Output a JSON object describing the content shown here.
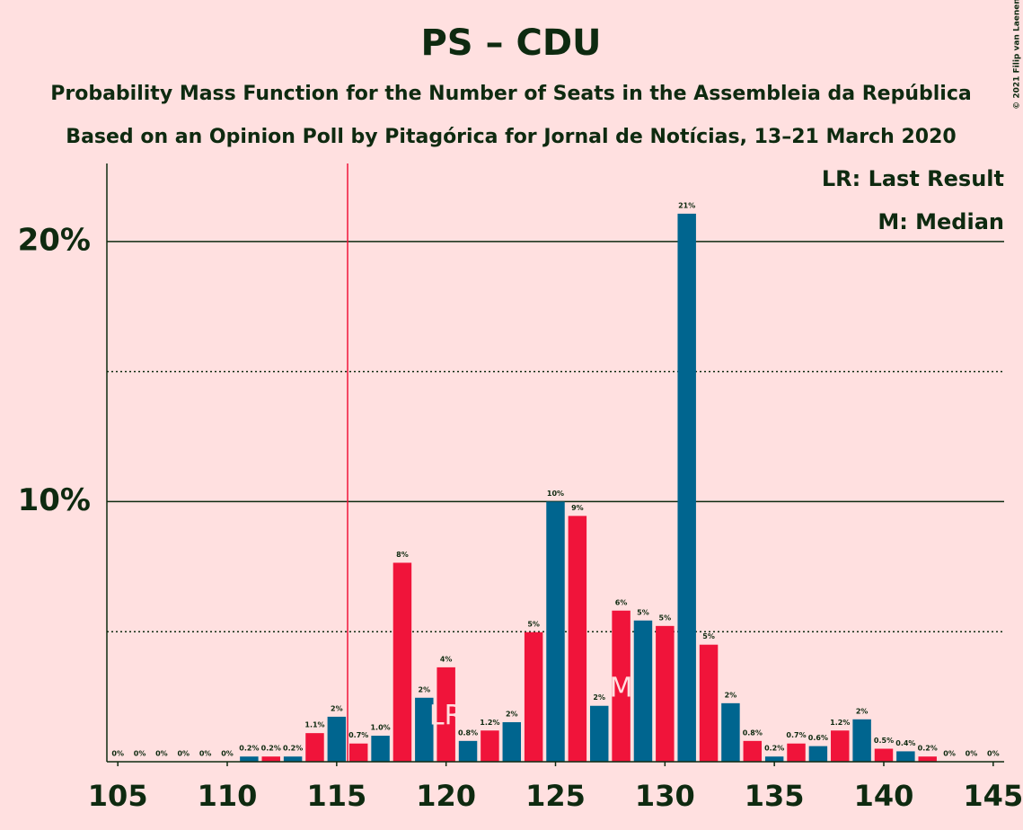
{
  "chart_data": {
    "type": "bar",
    "title": "PS – CDU",
    "subtitle": "Probability Mass Function for the Number of Seats in the Assembleia da República",
    "subtitle2": "Based on an Opinion Poll by Pitagórica for Jornal de Notícias, 13–21 March 2020",
    "copyright": "© 2021 Filip van Laenen",
    "legend": [
      "LR: Last Result",
      "M: Median"
    ],
    "x": [
      105,
      106,
      107,
      108,
      109,
      110,
      111,
      112,
      113,
      114,
      115,
      116,
      117,
      118,
      119,
      120,
      121,
      122,
      123,
      124,
      125,
      126,
      127,
      128,
      129,
      130,
      131,
      132,
      133,
      134,
      135,
      136,
      137,
      138,
      139,
      140,
      141,
      142,
      143,
      144,
      145
    ],
    "values": [
      0,
      0,
      0,
      0,
      0,
      0,
      0.2,
      0.2,
      0.2,
      1.1,
      1.73,
      0.7,
      1.0,
      7.65,
      2.46,
      3.63,
      0.8,
      1.2,
      1.52,
      4.98,
      10.0,
      9.45,
      2.15,
      5.81,
      5.43,
      5.22,
      21.07,
      4.5,
      2.25,
      0.8,
      0.2,
      0.7,
      0.6,
      1.2,
      1.63,
      0.5,
      0.4,
      0.2,
      0,
      0,
      0
    ],
    "value_labels": [
      "0%",
      "0%",
      "0%",
      "0%",
      "0%",
      "0%",
      "0.2%",
      "0.2%",
      "0.2%",
      "1.1%",
      "2%",
      "0.7%",
      "1.0%",
      "8%",
      "2%",
      "4%",
      "0.8%",
      "1.2%",
      "2%",
      "5%",
      "10%",
      "9%",
      "2%",
      "6%",
      "5%",
      "5%",
      "21%",
      "5%",
      "2%",
      "0.8%",
      "0.2%",
      "0.7%",
      "0.6%",
      "1.2%",
      "2%",
      "0.5%",
      "0.4%",
      "0.2%",
      "0%",
      "0%",
      "0%"
    ],
    "colors": {
      "even": "#f0143a",
      "odd": "#00658f"
    },
    "xlim": [
      104.5,
      145.5
    ],
    "xticks": [
      105,
      110,
      115,
      120,
      125,
      130,
      135,
      140,
      145
    ],
    "ylim": [
      0,
      23
    ],
    "yticks": [
      {
        "value": 10,
        "label": "10%"
      },
      {
        "value": 20,
        "label": "20%"
      }
    ],
    "minor_yticks": [
      5,
      15
    ],
    "threshold_x": 115.5,
    "last_result": 120,
    "last_result_label": "LR",
    "median": 128,
    "median_label": "M"
  }
}
